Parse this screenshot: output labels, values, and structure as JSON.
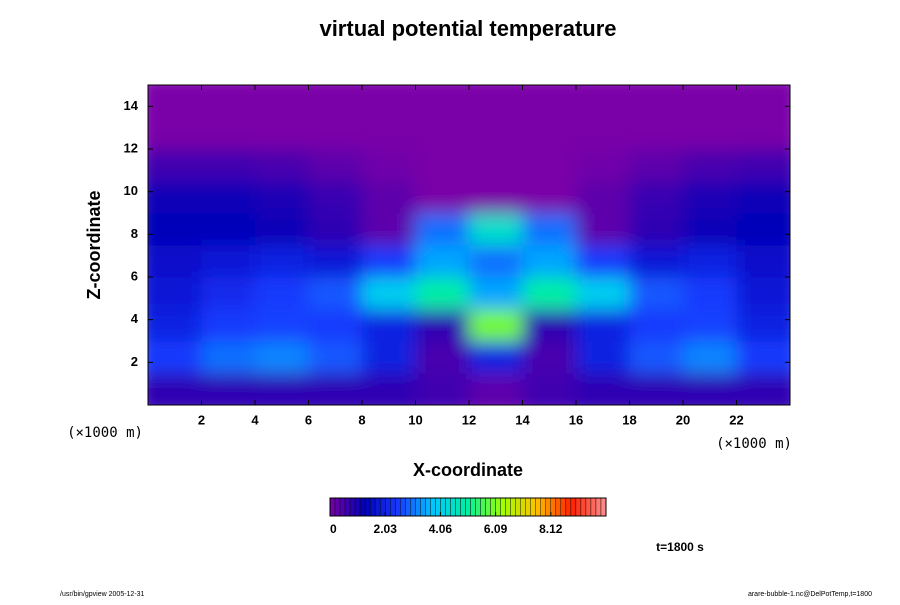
{
  "chart_data": {
    "type": "heatmap",
    "title": "virtual potential temperature",
    "x_label": "X-coordinate",
    "y_label": "Z-coordinate",
    "x_unit": "(×1000 m)",
    "y_unit": "(×1000 m)",
    "annotation": "t=1800 s",
    "footer_left": "/usr/bin/gpview 2005-12-31",
    "footer_right": "arare-bubble-1.nc@DelPotTemp,t=1800",
    "x": [
      1,
      3,
      5,
      7,
      9,
      11,
      13,
      15,
      17,
      19,
      21,
      23
    ],
    "y": [
      0.75,
      2.25,
      3.75,
      5.25,
      6.75,
      8.25,
      9.75,
      11.25,
      12.75,
      14.25
    ],
    "z": [
      [
        0.8,
        0.8,
        0.8,
        0.8,
        0.8,
        0.6,
        0.3,
        0.6,
        0.8,
        0.8,
        0.8,
        0.8
      ],
      [
        2.5,
        3,
        3.2,
        2.8,
        2,
        0.5,
        2,
        0.5,
        2,
        2.8,
        3.2,
        2.5
      ],
      [
        2,
        2.5,
        2.6,
        2.5,
        2,
        0.8,
        6,
        0.8,
        2,
        2.5,
        2.6,
        2
      ],
      [
        1.8,
        2.2,
        2.5,
        2.8,
        4,
        5,
        3.5,
        5,
        4,
        2.8,
        2.5,
        1.8
      ],
      [
        1.6,
        1.8,
        2,
        1.8,
        2.5,
        3.5,
        3,
        3.5,
        2.5,
        1.8,
        2,
        1.6
      ],
      [
        1.3,
        1.3,
        1.2,
        0.8,
        0.3,
        3,
        4.5,
        3,
        0.3,
        0.8,
        1.2,
        1.3
      ],
      [
        1.2,
        1.2,
        1,
        0.7,
        0.3,
        0,
        0,
        0,
        0.3,
        0.7,
        1,
        1.2
      ],
      [
        0.6,
        0.6,
        0.5,
        0.3,
        0.1,
        0,
        0,
        0,
        0.1,
        0.3,
        0.5,
        0.6
      ],
      [
        0,
        0,
        0,
        0,
        0,
        0,
        0,
        0,
        0,
        0,
        0,
        0
      ],
      [
        0,
        0,
        0,
        0,
        0,
        0,
        0,
        0,
        0,
        0,
        0,
        0
      ]
    ],
    "xlim": [
      0,
      24
    ],
    "ylim": [
      0,
      15
    ],
    "xticks": [
      2,
      4,
      6,
      8,
      10,
      12,
      14,
      16,
      18,
      20,
      22
    ],
    "yticks": [
      2,
      4,
      6,
      8,
      10,
      12,
      14
    ],
    "clim": [
      0,
      10.15
    ],
    "cticks": [
      0,
      2.03,
      4.06,
      6.09,
      8.12
    ],
    "colormap": [
      "#7a00a8",
      "#0000b8",
      "#1a3cff",
      "#00c8ff",
      "#00f0a0",
      "#a0ff00",
      "#ffc000",
      "#ff2000",
      "#ff9090"
    ]
  }
}
